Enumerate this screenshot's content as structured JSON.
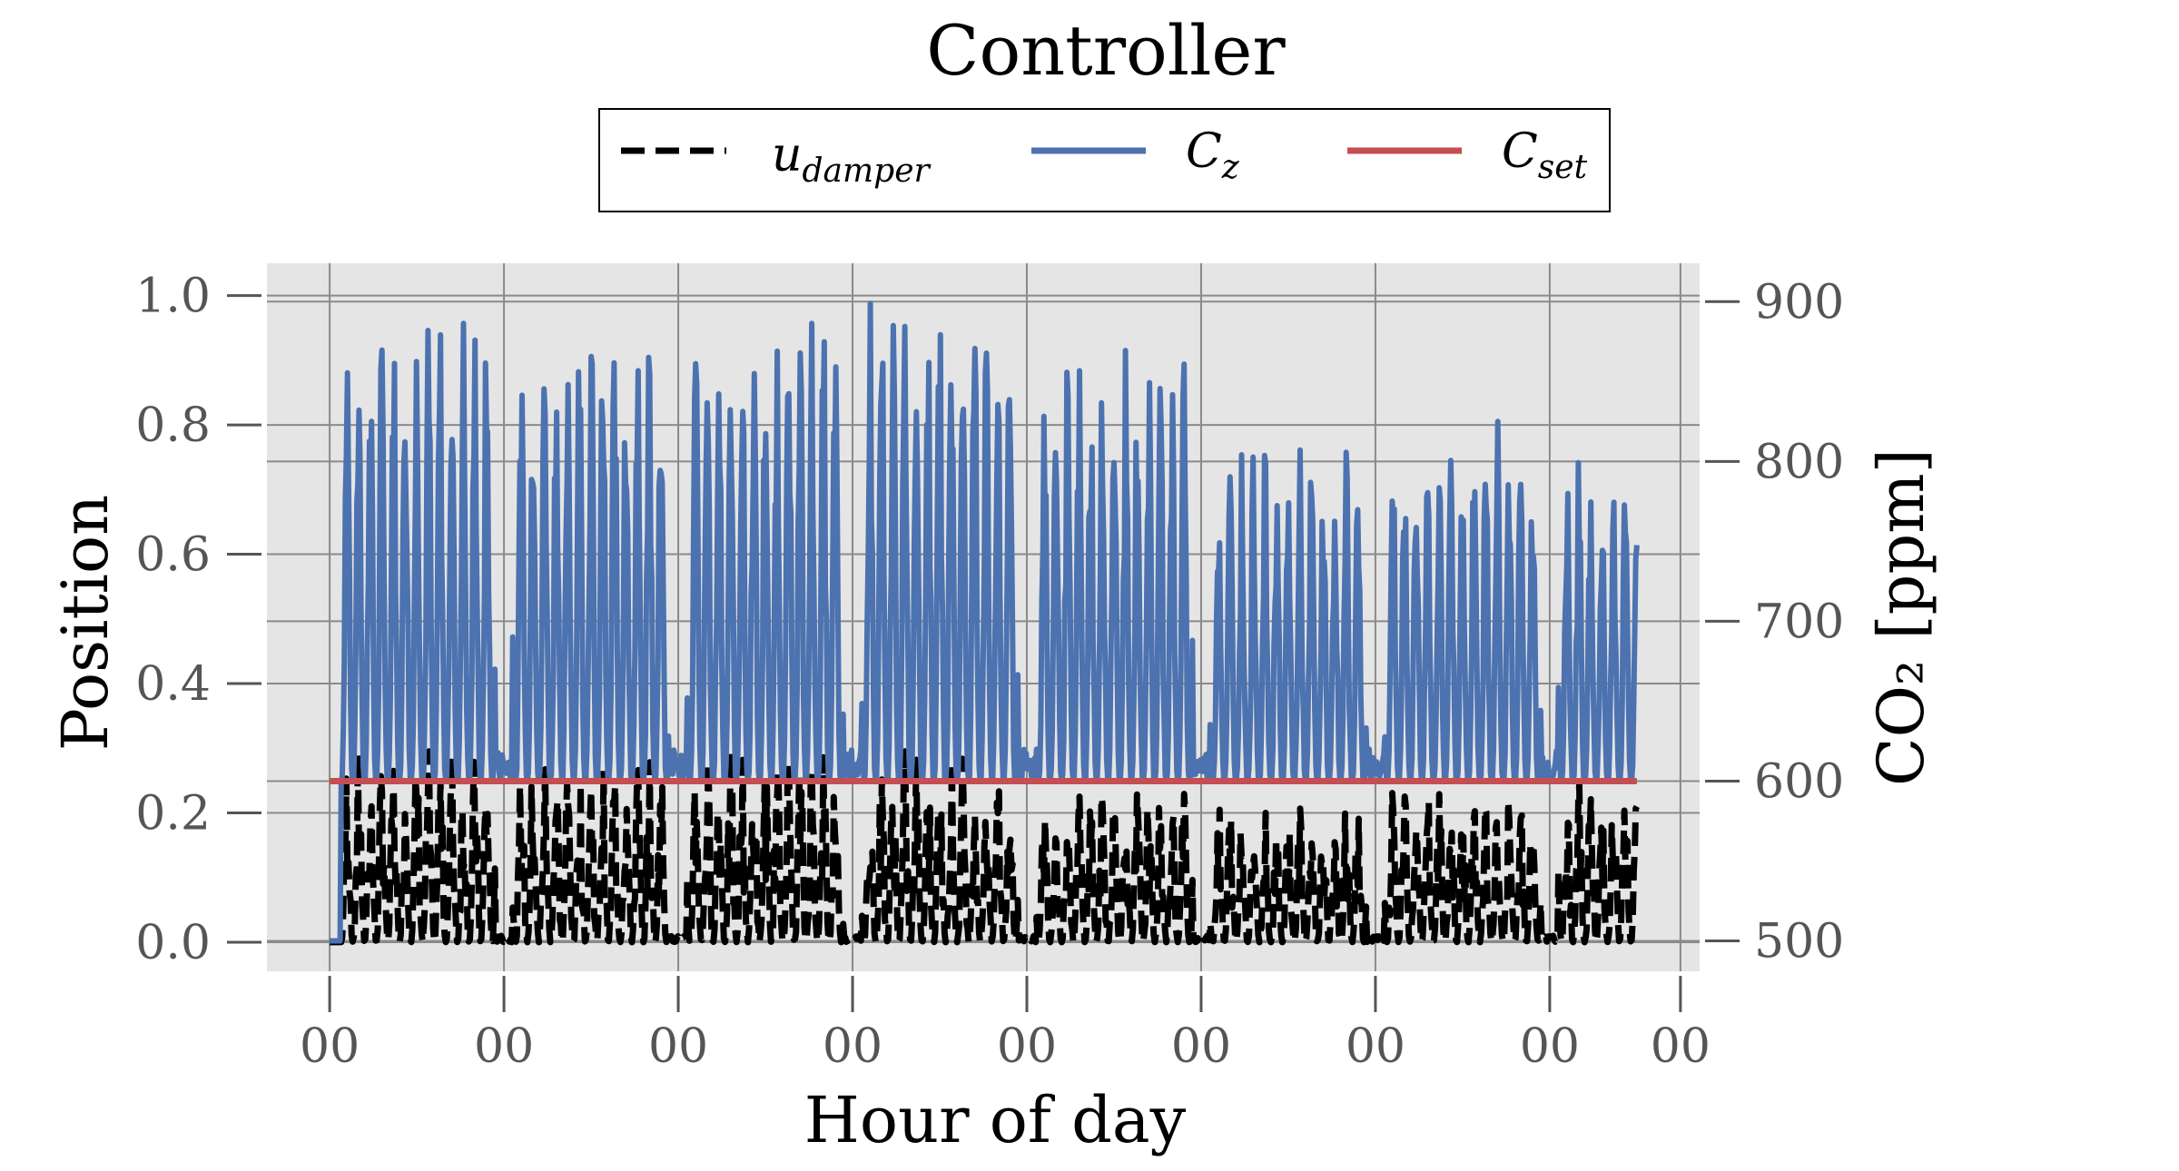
{
  "chart_data": {
    "type": "line",
    "title": "Controller",
    "xlabel": "Hour of day",
    "ylabel_left": "Position",
    "ylabel_right": "CO₂ [ppm]",
    "x_tick_labels": [
      "00",
      "00",
      "00",
      "00",
      "00",
      "00",
      "00",
      "00",
      "00"
    ],
    "x_tick_days": [
      0,
      1,
      2,
      3,
      4,
      5,
      6,
      7,
      7.75
    ],
    "xlim_days": [
      -0.36,
      7.86
    ],
    "ylim_left": [
      -0.045,
      1.05
    ],
    "yticks_left": [
      0.0,
      0.2,
      0.4,
      0.6,
      0.8,
      1.0
    ],
    "ytick_labels_left": [
      "0.0",
      "0.2",
      "0.4",
      "0.6",
      "0.8",
      "1.0"
    ],
    "ylim_right": [
      481,
      924
    ],
    "yticks_right": [
      500,
      600,
      700,
      800,
      900
    ],
    "ytick_labels_right": [
      "500",
      "600",
      "700",
      "800",
      "900"
    ],
    "grid": true,
    "legend_position": "top-center",
    "colors": {
      "damper": "#000000",
      "co2": "#4c72b0",
      "setpoint": "#c44e52",
      "plot_bg": "#e5e5e5"
    },
    "series": [
      {
        "name": "u_damper",
        "axis": "left",
        "style": "dashed",
        "color": "#000000",
        "daily_peaks": [
          0.31,
          0.3,
          0.31,
          0.3,
          0.25,
          0.23,
          0.24,
          0.26,
          0.25
        ]
      },
      {
        "name": "C_z",
        "axis": "right",
        "unit": "ppm",
        "color": "#4c72b0",
        "daily_peaks": [
          900,
          901,
          898,
          918,
          870,
          810,
          830,
          805,
          860
        ]
      },
      {
        "name": "C_set",
        "axis": "right",
        "unit": "ppm",
        "color": "#c44e52",
        "x_days": [
          0,
          7.5
        ],
        "values": [
          600,
          600
        ]
      }
    ]
  },
  "legend": {
    "entries": [
      {
        "symbol": "u",
        "sub": "damper"
      },
      {
        "symbol": "C",
        "sub": "z"
      },
      {
        "symbol": "C",
        "sub": "set"
      }
    ]
  }
}
